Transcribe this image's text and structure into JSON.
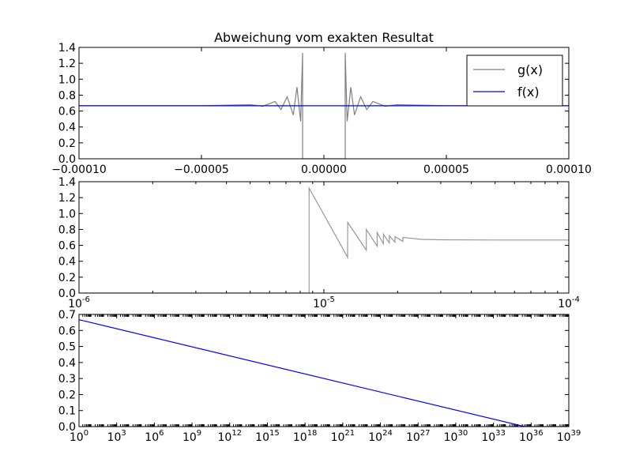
{
  "figure": {
    "title": "Abweichung vom exakten Resultat"
  },
  "chart_data": [
    {
      "type": "line",
      "title": "Abweichung vom exakten Resultat",
      "xscale": "linear",
      "xlim": [
        -0.0001,
        0.0001
      ],
      "ylim": [
        0.0,
        1.4
      ],
      "x_tick_labels": [
        "−0.00010",
        "−0.00005",
        "0.00000",
        "0.00005",
        "0.00010"
      ],
      "y_tick_labels": [
        "0.0",
        "0.2",
        "0.4",
        "0.6",
        "0.8",
        "1.0",
        "1.2",
        "1.4"
      ],
      "legend_position": "upper right",
      "series": [
        {
          "name": "g(x)",
          "color": "#808080",
          "x": [
            -0.0001,
            -5e-05,
            -3e-05,
            -2.5e-05,
            -2e-05,
            -1.75e-05,
            -1.5e-05,
            -1.25e-05,
            -1.1e-05,
            -9.5e-06,
            -8.7e-06,
            -8.7e-06,
            8.7e-06,
            8.7e-06,
            9.5e-06,
            1.1e-05,
            1.25e-05,
            1.5e-05,
            1.75e-05,
            2e-05,
            2.5e-05,
            3e-05,
            5e-05,
            0.0001
          ],
          "y": [
            0.667,
            0.667,
            0.68,
            0.66,
            0.72,
            0.62,
            0.78,
            0.55,
            0.9,
            0.47,
            1.33,
            0.0,
            0.0,
            1.33,
            0.47,
            0.9,
            0.55,
            0.78,
            0.62,
            0.72,
            0.66,
            0.68,
            0.667,
            0.667
          ]
        },
        {
          "name": "f(x)",
          "color": "#0000ff",
          "x": [
            -0.0001,
            0.0001
          ],
          "y": [
            0.6667,
            0.6667
          ]
        }
      ]
    },
    {
      "type": "line",
      "title": "",
      "xscale": "log",
      "xlim": [
        1e-06,
        0.0001
      ],
      "ylim": [
        0.0,
        1.4
      ],
      "x_tick_labels": [
        {
          "base": "10",
          "exp": "-6"
        },
        {
          "base": "10",
          "exp": "-5"
        },
        {
          "base": "10",
          "exp": "-4"
        }
      ],
      "y_tick_labels": [
        "0.0",
        "0.2",
        "0.4",
        "0.6",
        "0.8",
        "1.0",
        "1.2",
        "1.4"
      ],
      "series": [
        {
          "name": "",
          "color": "#999999",
          "x": [
            1e-06,
            8.7e-06,
            8.7e-06,
            1.25e-05,
            1.25e-05,
            1.49e-05,
            1.49e-05,
            1.65e-05,
            1.65e-05,
            1.75e-05,
            1.75e-05,
            1.85e-05,
            1.85e-05,
            1.95e-05,
            1.95e-05,
            2.1e-05,
            2.1e-05,
            2.5e-05,
            3e-05,
            5e-05,
            0.0001
          ],
          "y": [
            0.0,
            0.0,
            1.32,
            0.45,
            0.89,
            0.54,
            0.8,
            0.59,
            0.76,
            0.62,
            0.74,
            0.63,
            0.72,
            0.64,
            0.71,
            0.65,
            0.7,
            0.675,
            0.67,
            0.667,
            0.667
          ]
        }
      ]
    },
    {
      "type": "line",
      "title": "",
      "xscale": "log",
      "xlim": [
        1,
        1e+39
      ],
      "ylim": [
        0.0,
        0.7
      ],
      "x_tick_labels": [
        {
          "base": "10",
          "exp": "0"
        },
        {
          "base": "10",
          "exp": "3"
        },
        {
          "base": "10",
          "exp": "6"
        },
        {
          "base": "10",
          "exp": "9"
        },
        {
          "base": "10",
          "exp": "12"
        },
        {
          "base": "10",
          "exp": "15"
        },
        {
          "base": "10",
          "exp": "18"
        },
        {
          "base": "10",
          "exp": "21"
        },
        {
          "base": "10",
          "exp": "24"
        },
        {
          "base": "10",
          "exp": "27"
        },
        {
          "base": "10",
          "exp": "30"
        },
        {
          "base": "10",
          "exp": "33"
        },
        {
          "base": "10",
          "exp": "36"
        },
        {
          "base": "10",
          "exp": "39"
        }
      ],
      "y_tick_labels": [
        "0.0",
        "0.1",
        "0.2",
        "0.3",
        "0.4",
        "0.5",
        "0.6",
        "0.7"
      ],
      "series": [
        {
          "name": "",
          "color": "#0000ff",
          "x": [
            1,
            3e+35,
            1e+39
          ],
          "y": [
            0.667,
            0.0,
            0.0
          ]
        }
      ]
    }
  ]
}
